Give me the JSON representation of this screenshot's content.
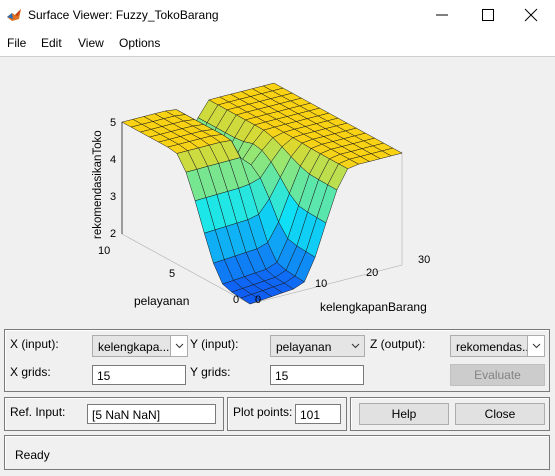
{
  "window": {
    "title": "Surface Viewer: Fuzzy_TokoBarang"
  },
  "menu": [
    "File",
    "Edit",
    "View",
    "Options"
  ],
  "plot": {
    "z_label": "rekomendasikanToko",
    "y_label": "pelayanan",
    "x_label": "kelengkapanBarang",
    "z_ticks": [
      "5",
      "4",
      "3",
      "2"
    ],
    "y_ticks": [
      "10",
      "5",
      "0"
    ],
    "x_ticks": [
      "0",
      "10",
      "20",
      "30"
    ]
  },
  "chart_data": {
    "type": "surface",
    "x_axis": "kelengkapanBarang",
    "y_axis": "pelayanan",
    "z_axis": "rekomendasikanToko",
    "x_range": [
      0,
      30
    ],
    "y_range": [
      0,
      10
    ],
    "z_range": [
      2,
      5
    ],
    "grid": "15x15"
  },
  "controls": {
    "x_label": "X (input):",
    "x_value": "kelengkapa...",
    "y_label": "Y (input):",
    "y_value": "pelayanan",
    "z_label": "Z (output):",
    "z_value": "rekomendas...",
    "xgrid_label": "X grids:",
    "xgrid_value": "15",
    "ygrid_label": "Y grids:",
    "ygrid_value": "15",
    "evaluate_label": "Evaluate",
    "ref_label": "Ref. Input:",
    "ref_value": "[5 NaN NaN]",
    "plotpoints_label": "Plot points:",
    "plotpoints_value": "101",
    "help_label": "Help",
    "close_label": "Close"
  },
  "status": {
    "text": "Ready"
  }
}
